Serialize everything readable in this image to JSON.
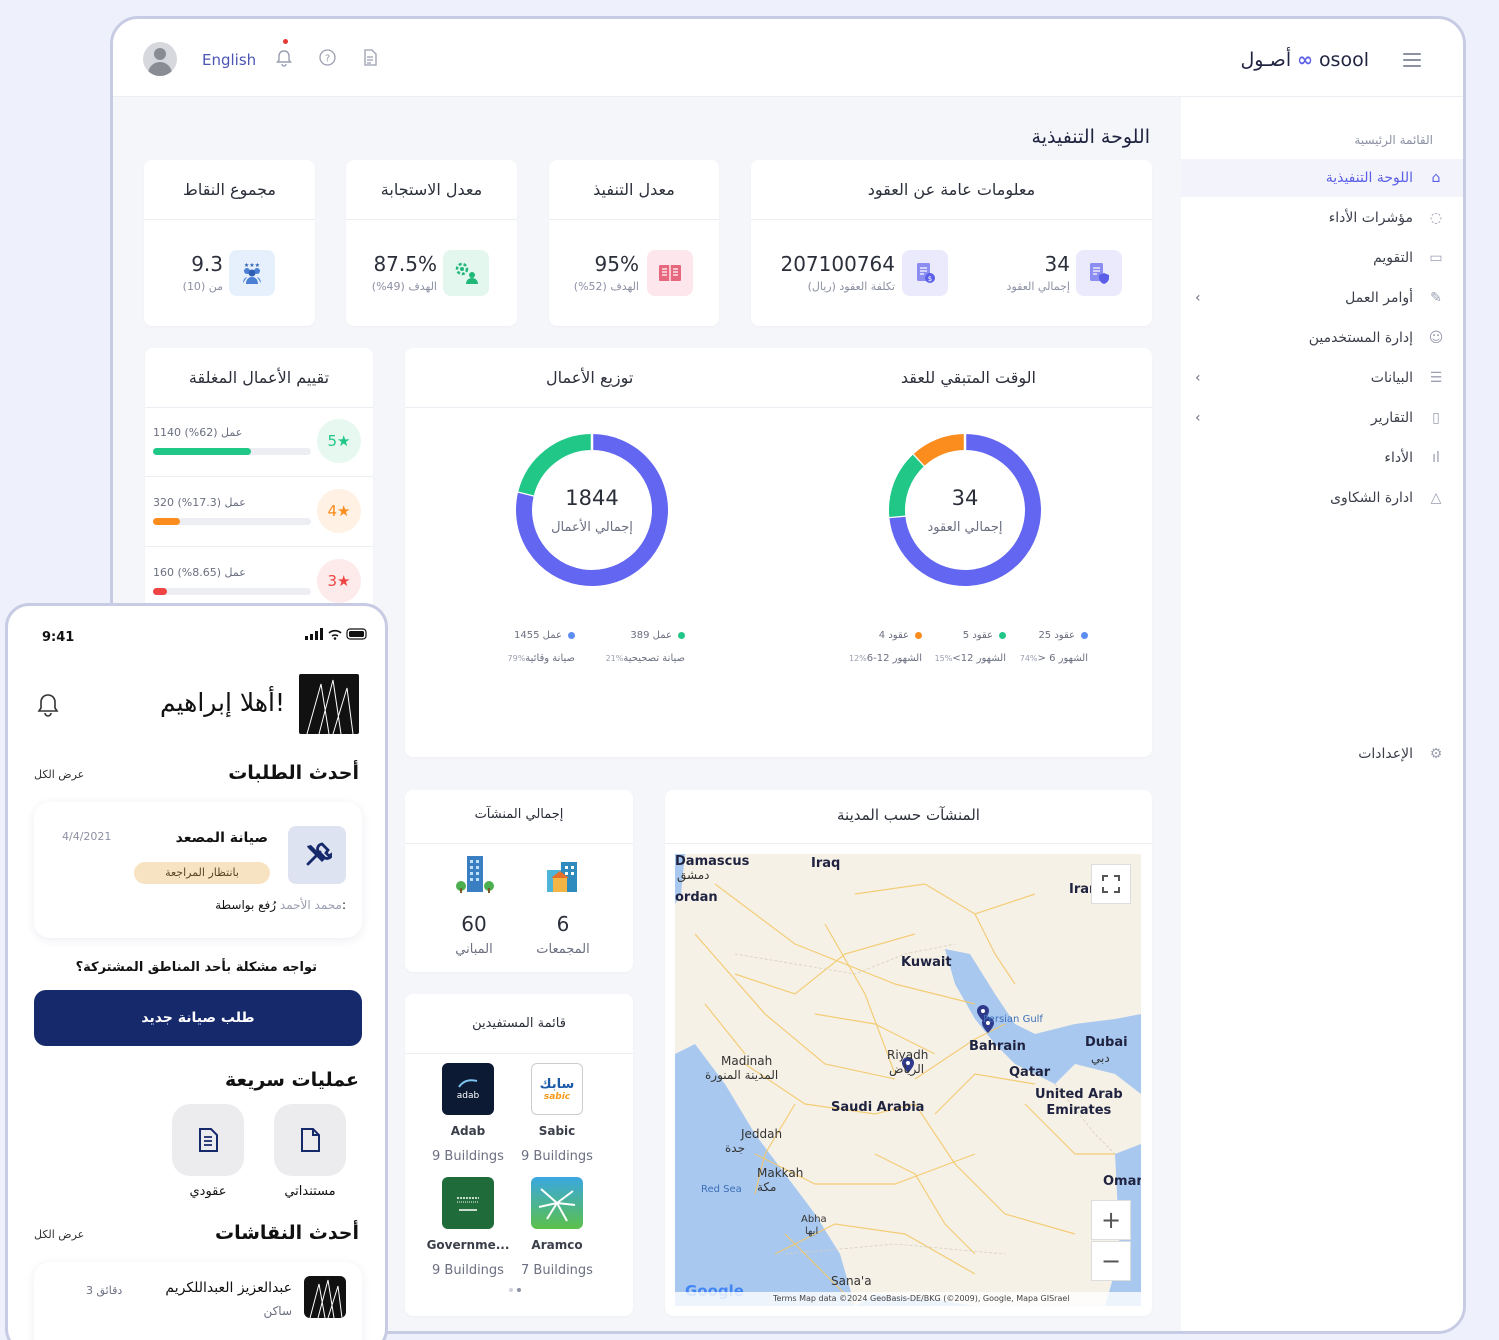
{
  "topbar": {
    "language": "English",
    "brand_ar": "أصـول",
    "brand_en": "osool"
  },
  "sidebar": {
    "section_title": "القائمة الرئيسية",
    "items": [
      {
        "label": "اللوحة التنفيذية",
        "icon": "home-icon",
        "active": true
      },
      {
        "label": "مؤشرات الأداء",
        "icon": "check-circle-icon"
      },
      {
        "label": "التقويم",
        "icon": "calendar-icon"
      },
      {
        "label": "أوامر العمل",
        "icon": "wrench-icon",
        "chevron": true
      },
      {
        "label": "إدارة المستخدمين",
        "icon": "users-icon"
      },
      {
        "label": "البيانات",
        "icon": "database-icon",
        "chevron": true
      },
      {
        "label": "التقارير",
        "icon": "file-icon",
        "chevron": true
      },
      {
        "label": "الأداء",
        "icon": "bar-chart-icon"
      },
      {
        "label": "ادارة الشكاوى",
        "icon": "warning-icon"
      }
    ],
    "settings": "الإعدادات"
  },
  "page_title": "اللوحة التنفيذية",
  "kpis": {
    "points": {
      "title": "مجموع النقاط",
      "value": "9.3",
      "sub": "من (10)"
    },
    "response": {
      "title": "معدل الاستجابة",
      "value": "87.5%",
      "sub": "الهدف (49%)"
    },
    "execution": {
      "title": "معدل التنفيذ",
      "value": "95%",
      "sub": "الهدف (52%)"
    },
    "contracts": {
      "title": "معلومات عامة عن العقود",
      "cost_value": "207100764",
      "cost_label": "تكلفة العقود (ريال)",
      "count_value": "34",
      "count_label": "إجمالي العقود"
    }
  },
  "ratings": {
    "title": "تقييم الأعمال المغلقة",
    "rows": [
      {
        "stars": "5",
        "text": "1140 عمل (62%)",
        "fraction": 0.62,
        "color": "#20c787",
        "bg": "#e6f8f0"
      },
      {
        "stars": "4",
        "text": "320 عمل (17.3%)",
        "fraction": 0.173,
        "color": "#fb8c1e",
        "bg": "#fff1e3"
      },
      {
        "stars": "3",
        "text": "160 عمل (8.65%)",
        "fraction": 0.0865,
        "color": "#ef4444",
        "bg": "#fdeaea"
      }
    ]
  },
  "charts_card": {
    "remaining_title": "الوقت المتبقي للعقد",
    "distribution_title": "توزيع الأعمال"
  },
  "chart_data": [
    {
      "type": "pie",
      "center_value": "34",
      "center_label": "إجمالي العقود",
      "slices": [
        {
          "label": "> 6 الشهور",
          "value": 25,
          "value_text": "25 عقود",
          "pct": "74%",
          "color": "#6366f1"
        },
        {
          "label": "<12 الشهور",
          "value": 5,
          "value_text": "5 عقود",
          "pct": "15%",
          "color": "#20c787"
        },
        {
          "label": "6-12 الشهور",
          "value": 4,
          "value_text": "4 عقود",
          "pct": "12%",
          "color": "#fb8c1e"
        }
      ]
    },
    {
      "type": "pie",
      "center_value": "1844",
      "center_label": "إجمالي الأعمال",
      "slices": [
        {
          "label": "صيانة وقائية",
          "value": 1455,
          "value_text": "1455 عمل",
          "pct": "79%",
          "color": "#6366f1"
        },
        {
          "label": "صيانة تصحيحية",
          "value": 389,
          "value_text": "389 عمل",
          "pct": "21%",
          "color": "#20c787"
        }
      ]
    }
  ],
  "facilities": {
    "title": "إجمالي المنشآت",
    "buildings_value": "60",
    "buildings_label": "المباني",
    "complexes_value": "6",
    "complexes_label": "المجمعات"
  },
  "beneficiaries": {
    "title": "قائمة المستفيدين",
    "items": [
      {
        "name": "Sabic",
        "count": "9 Buildings",
        "logo_text": "سابك",
        "logo_sub": "sabic"
      },
      {
        "name": "Adab",
        "count": "9 Buildings",
        "logo_text": "adab"
      },
      {
        "name": "Aramco",
        "count": "7 Buildings"
      },
      {
        "name": "Governme...",
        "count": "9 Buildings"
      }
    ]
  },
  "map": {
    "title": "المنشآت حسب المدينة",
    "labels": {
      "damascus": "Damascus",
      "damascus_ar": "دمشق",
      "iraq": "Iraq",
      "iran": "Iran",
      "jordan": "ordan",
      "kuwait": "Kuwait",
      "gulf": "Persian Gulf",
      "bahrain": "Bahrain",
      "qatar": "Qatar",
      "dubai": "Dubai",
      "dubai_ar": "دبي",
      "uae": "United Arab\nEmirates",
      "riyadh": "Riyadh",
      "riyadh_ar": "الرياض",
      "madinah": "Madinah",
      "madinah_ar": "المدينة المنورة",
      "saudi": "Saudi Arabia",
      "jeddah": "Jeddah",
      "jeddah_ar": "جدة",
      "makkah": "Makkah",
      "makkah_ar": "مكة",
      "redsea": "Red Sea",
      "abha": "Abha",
      "abha_ar": "ابها",
      "oman": "Oman",
      "sanaa": "Sana'a",
      "google": "Google"
    },
    "footer": "Terms     Map data ©2024 GeoBasis-DE/BKG (©2009), Google, Mapa GISrael"
  },
  "phone": {
    "time": "9:41",
    "greeting": "أهلا إبراهيم!",
    "latest_requests": "أحدث الطلبات",
    "view_all": "عرض الكل",
    "request": {
      "title": "صيانة المصعد",
      "date": "4/4/2021",
      "status": "بانتظار المراجعة",
      "by_label": "رُفع بواسطة:",
      "by_name": "محمد الأحمد"
    },
    "question": "تواجه مشكلة بأحد المناطق المشتركة؟",
    "cta": "طلب صيانة جديد",
    "quick_actions": "عمليات سريعة",
    "qa_docs": "مستنداتي",
    "qa_contract": "عقودي",
    "latest_discussions": "أحدث النقاشات",
    "view_all_2": "عرض الكل",
    "discussion": {
      "name": "عبدالعزيز العبداللكريم",
      "time": "3 دقائق",
      "role": "ساكن"
    }
  }
}
